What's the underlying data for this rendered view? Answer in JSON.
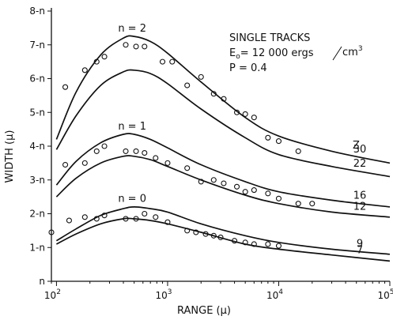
{
  "chart_data": {
    "type": "line",
    "title": "SINGLE   TRACKS",
    "annotations": {
      "energy_prefix": "E",
      "energy_sub": "o",
      "energy_value": "= 12 000  ergs",
      "energy_unit_num": "cm",
      "energy_unit_exp": "3",
      "probability": "P = 0.4",
      "z_header": "Z"
    },
    "xlabel": "RANGE (μ)",
    "ylabel": "WIDTH (μ)",
    "xscale": "log",
    "xlim": [
      90,
      100000
    ],
    "ylim": [
      0,
      8
    ],
    "x_ticks": [
      {
        "value": 100,
        "base": "10",
        "exp": "2"
      },
      {
        "value": 1000,
        "base": "10",
        "exp": "3"
      },
      {
        "value": 10000,
        "base": "10",
        "exp": "4"
      },
      {
        "value": 100000,
        "base": "10",
        "exp": "5"
      }
    ],
    "y_ticks": [
      {
        "value": 0,
        "label": "n"
      },
      {
        "value": 1,
        "label": "1-n"
      },
      {
        "value": 2,
        "label": "2-n"
      },
      {
        "value": 3,
        "label": "3-n"
      },
      {
        "value": 4,
        "label": "4-n"
      },
      {
        "value": 5,
        "label": "5-n"
      },
      {
        "value": 6,
        "label": "6-n"
      },
      {
        "value": 7,
        "label": "7-n"
      },
      {
        "value": 8,
        "label": "8-n"
      }
    ],
    "curves": [
      {
        "label": "30",
        "x": [
          100,
          150,
          250,
          400,
          500,
          700,
          1000,
          2000,
          5000,
          10000,
          30000,
          100000
        ],
        "y": [
          4.2,
          5.6,
          6.7,
          7.2,
          7.25,
          7.1,
          6.75,
          5.9,
          4.85,
          4.3,
          3.85,
          3.5
        ]
      },
      {
        "label": "22",
        "x": [
          100,
          150,
          250,
          400,
          500,
          700,
          1000,
          2000,
          5000,
          10000,
          30000,
          100000
        ],
        "y": [
          3.9,
          4.9,
          5.8,
          6.2,
          6.25,
          6.15,
          5.85,
          5.1,
          4.25,
          3.75,
          3.4,
          3.1
        ]
      },
      {
        "label": "16",
        "x": [
          100,
          150,
          250,
          400,
          500,
          700,
          1000,
          2000,
          5000,
          10000,
          30000,
          100000
        ],
        "y": [
          2.85,
          3.55,
          4.1,
          4.35,
          4.35,
          4.2,
          3.95,
          3.45,
          2.95,
          2.65,
          2.4,
          2.2
        ]
      },
      {
        "label": "12",
        "x": [
          100,
          150,
          250,
          400,
          500,
          700,
          1000,
          2000,
          5000,
          10000,
          30000,
          100000
        ],
        "y": [
          2.5,
          3.05,
          3.5,
          3.7,
          3.7,
          3.6,
          3.4,
          3.0,
          2.55,
          2.3,
          2.05,
          1.9
        ]
      },
      {
        "label": "9",
        "x": [
          100,
          150,
          250,
          400,
          500,
          700,
          1000,
          2000,
          5000,
          10000,
          30000,
          100000
        ],
        "y": [
          1.2,
          1.55,
          1.95,
          2.15,
          2.2,
          2.15,
          2.05,
          1.7,
          1.35,
          1.15,
          0.95,
          0.8
        ]
      },
      {
        "label": "7",
        "x": [
          100,
          150,
          250,
          400,
          500,
          700,
          1000,
          2000,
          5000,
          10000,
          30000,
          100000
        ],
        "y": [
          1.1,
          1.4,
          1.7,
          1.85,
          1.85,
          1.8,
          1.7,
          1.45,
          1.1,
          0.95,
          0.78,
          0.6
        ]
      }
    ],
    "group_labels": [
      {
        "text": "n = 2",
        "x": 480,
        "y": 7.35
      },
      {
        "text": "n = 1",
        "x": 480,
        "y": 4.45
      },
      {
        "text": "n = 0",
        "x": 480,
        "y": 2.3
      }
    ],
    "points": [
      {
        "x": 120,
        "y": 5.75
      },
      {
        "x": 180,
        "y": 6.25
      },
      {
        "x": 230,
        "y": 6.5
      },
      {
        "x": 270,
        "y": 6.65
      },
      {
        "x": 420,
        "y": 7.0
      },
      {
        "x": 520,
        "y": 6.95
      },
      {
        "x": 620,
        "y": 6.95
      },
      {
        "x": 900,
        "y": 6.5
      },
      {
        "x": 1100,
        "y": 6.5
      },
      {
        "x": 1500,
        "y": 5.8
      },
      {
        "x": 2000,
        "y": 6.05
      },
      {
        "x": 2600,
        "y": 5.55
      },
      {
        "x": 3200,
        "y": 5.4
      },
      {
        "x": 4200,
        "y": 5.0
      },
      {
        "x": 5000,
        "y": 4.95
      },
      {
        "x": 6000,
        "y": 4.85
      },
      {
        "x": 8000,
        "y": 4.25
      },
      {
        "x": 10000,
        "y": 4.15
      },
      {
        "x": 15000,
        "y": 3.85
      },
      {
        "x": 120,
        "y": 3.45
      },
      {
        "x": 180,
        "y": 3.5
      },
      {
        "x": 230,
        "y": 3.85
      },
      {
        "x": 270,
        "y": 4.0
      },
      {
        "x": 420,
        "y": 3.85
      },
      {
        "x": 520,
        "y": 3.85
      },
      {
        "x": 620,
        "y": 3.8
      },
      {
        "x": 780,
        "y": 3.65
      },
      {
        "x": 1000,
        "y": 3.5
      },
      {
        "x": 1500,
        "y": 3.35
      },
      {
        "x": 2000,
        "y": 2.95
      },
      {
        "x": 2600,
        "y": 3.0
      },
      {
        "x": 3200,
        "y": 2.9
      },
      {
        "x": 4200,
        "y": 2.8
      },
      {
        "x": 5000,
        "y": 2.65
      },
      {
        "x": 6000,
        "y": 2.7
      },
      {
        "x": 8000,
        "y": 2.6
      },
      {
        "x": 10000,
        "y": 2.45
      },
      {
        "x": 15000,
        "y": 2.3
      },
      {
        "x": 20000,
        "y": 2.3
      },
      {
        "x": 90,
        "y": 1.45
      },
      {
        "x": 130,
        "y": 1.8
      },
      {
        "x": 180,
        "y": 1.9
      },
      {
        "x": 230,
        "y": 1.85
      },
      {
        "x": 270,
        "y": 1.95
      },
      {
        "x": 420,
        "y": 1.85
      },
      {
        "x": 520,
        "y": 1.85
      },
      {
        "x": 620,
        "y": 2.0
      },
      {
        "x": 780,
        "y": 1.9
      },
      {
        "x": 1000,
        "y": 1.75
      },
      {
        "x": 1500,
        "y": 1.5
      },
      {
        "x": 1800,
        "y": 1.45
      },
      {
        "x": 2200,
        "y": 1.4
      },
      {
        "x": 2600,
        "y": 1.35
      },
      {
        "x": 3000,
        "y": 1.3
      },
      {
        "x": 4000,
        "y": 1.2
      },
      {
        "x": 5000,
        "y": 1.15
      },
      {
        "x": 6000,
        "y": 1.1
      },
      {
        "x": 8000,
        "y": 1.1
      },
      {
        "x": 10000,
        "y": 1.05
      }
    ],
    "grid": false
  }
}
